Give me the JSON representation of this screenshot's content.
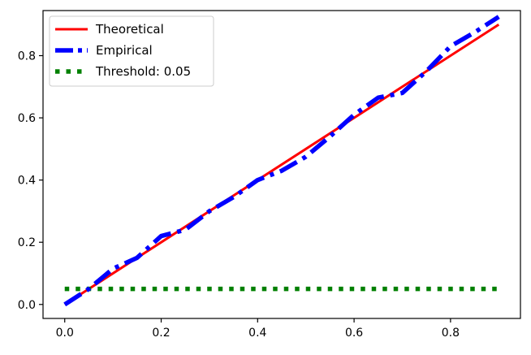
{
  "chart_data": {
    "type": "line",
    "xlim": [
      -0.045,
      0.945
    ],
    "ylim": [
      -0.045,
      0.945
    ],
    "xticks": [
      0.0,
      0.2,
      0.4,
      0.6,
      0.8
    ],
    "yticks": [
      0.0,
      0.2,
      0.4,
      0.6,
      0.8
    ],
    "xtick_labels": [
      "0.0",
      "0.2",
      "0.4",
      "0.6",
      "0.8"
    ],
    "ytick_labels": [
      "0.0",
      "0.2",
      "0.4",
      "0.6",
      "0.8"
    ],
    "grid": false,
    "legend_position": "top-left",
    "series": [
      {
        "name": "Theoretical",
        "color": "#ff0000",
        "style": "solid",
        "x": [
          0.0,
          0.9
        ],
        "y": [
          0.0,
          0.9
        ]
      },
      {
        "name": "Empirical",
        "color": "#0000ff",
        "style": "dashdot",
        "x": [
          0.0,
          0.05,
          0.1,
          0.15,
          0.2,
          0.25,
          0.3,
          0.35,
          0.4,
          0.45,
          0.5,
          0.55,
          0.6,
          0.65,
          0.7,
          0.75,
          0.8,
          0.85,
          0.9
        ],
        "y": [
          0.0,
          0.05,
          0.115,
          0.15,
          0.22,
          0.24,
          0.3,
          0.345,
          0.4,
          0.43,
          0.475,
          0.54,
          0.61,
          0.665,
          0.68,
          0.75,
          0.83,
          0.875,
          0.925
        ]
      },
      {
        "name": "Threshold: 0.05",
        "color": "#008000",
        "style": "dotted",
        "x": [
          0.0,
          0.9
        ],
        "y": [
          0.05,
          0.05
        ]
      }
    ]
  }
}
